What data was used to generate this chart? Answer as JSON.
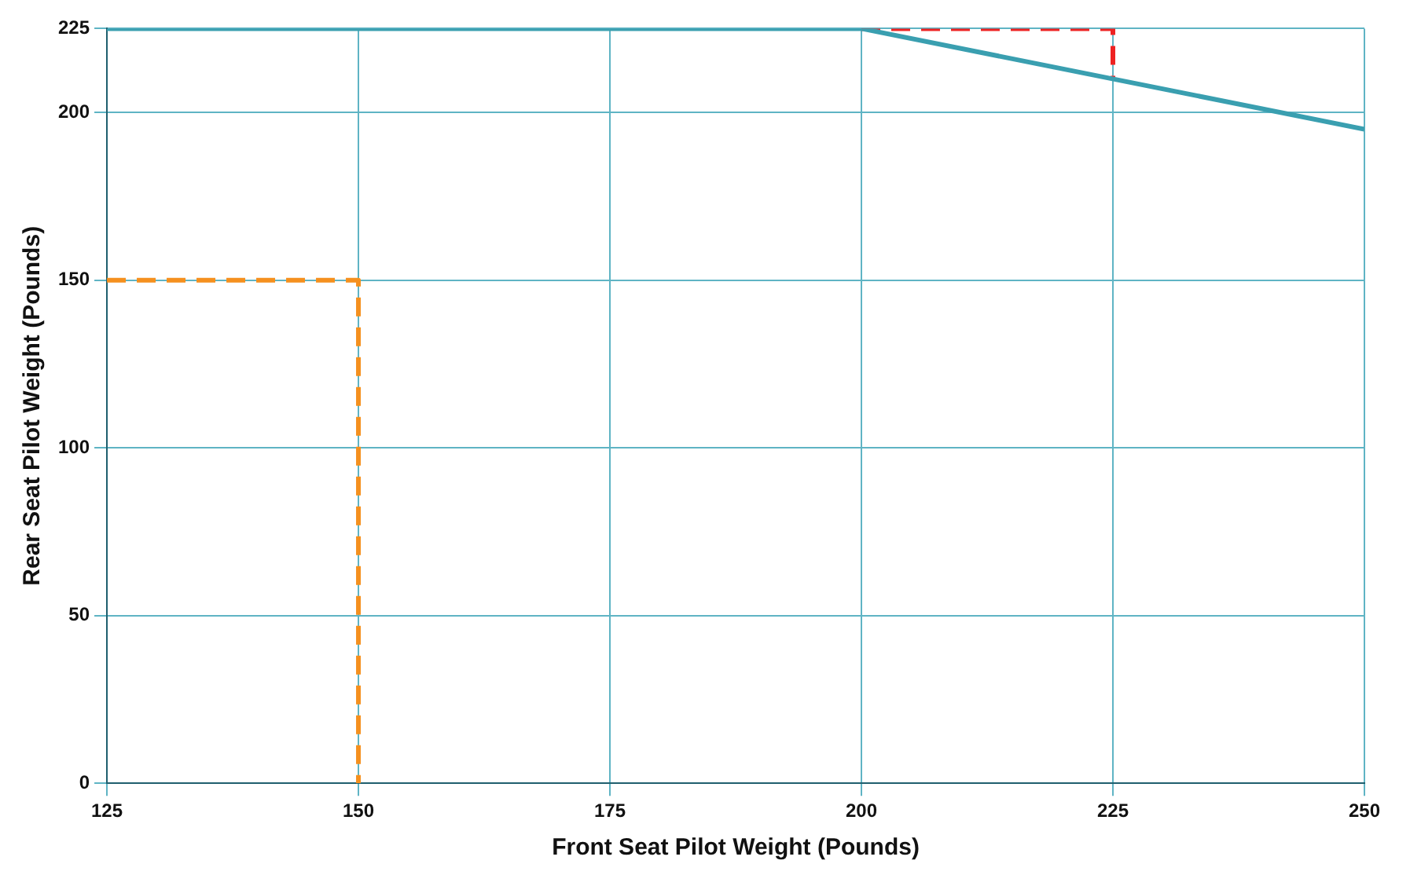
{
  "chart_data": {
    "type": "line",
    "xlabel": "Front Seat Pilot Weight (Pounds)",
    "ylabel": "Rear Seat Pilot Weight (Pounds)",
    "xlim": [
      125,
      250
    ],
    "xticks": [
      125,
      150,
      175,
      200,
      225,
      250
    ],
    "ylim": [
      0,
      225
    ],
    "yticks": [
      0,
      50,
      100,
      150,
      200,
      225
    ],
    "grid": true,
    "legend": false,
    "marker": "none",
    "series": [
      {
        "type": "line",
        "color": "#3a9fb0",
        "x": [
          125,
          200,
          250
        ],
        "values": [
          225,
          225,
          195
        ]
      },
      {
        "type": "line",
        "color": "#f5901e",
        "line_style": "dashed",
        "x": [
          125,
          150,
          150
        ],
        "values": [
          150,
          150,
          0
        ]
      },
      {
        "type": "line",
        "color": "#ee2222",
        "line_style": "dashed",
        "x": [
          200,
          225,
          225
        ],
        "values": [
          225,
          225,
          210
        ]
      }
    ]
  }
}
